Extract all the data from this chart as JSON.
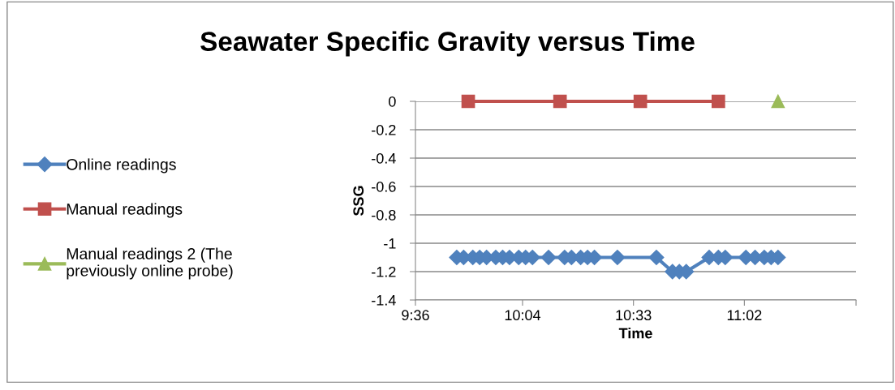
{
  "chart_data": {
    "type": "line",
    "title": "Seawater Specific Gravity versus Time",
    "xlabel": "Time",
    "ylabel": "SSG",
    "series": [
      {
        "name": "Online readings",
        "color": "#4f81bd",
        "marker": "diamond",
        "x": [
          9.78,
          9.81,
          9.85,
          9.88,
          9.91,
          9.95,
          9.98,
          10.01,
          10.05,
          10.08,
          10.11,
          10.18,
          10.25,
          10.28,
          10.32,
          10.35,
          10.38,
          10.48,
          10.65,
          10.72,
          10.75,
          10.78,
          10.88,
          10.92,
          10.95,
          11.04,
          11.08,
          11.12,
          11.15,
          11.18
        ],
        "values": [
          -1.1,
          -1.1,
          -1.1,
          -1.1,
          -1.1,
          -1.1,
          -1.1,
          -1.1,
          -1.1,
          -1.1,
          -1.1,
          -1.1,
          -1.1,
          -1.1,
          -1.1,
          -1.1,
          -1.1,
          -1.1,
          -1.1,
          -1.2,
          -1.2,
          -1.2,
          -1.1,
          -1.1,
          -1.1,
          -1.1,
          -1.1,
          -1.1,
          -1.1,
          -1.1
        ]
      },
      {
        "name": "Manual readings",
        "color": "#c0504d",
        "marker": "square",
        "x": [
          9.83,
          10.23,
          10.58,
          10.92
        ],
        "values": [
          0,
          0,
          0,
          0
        ]
      },
      {
        "name": "Manual readings 2 (The\npreviously online probe)",
        "color": "#9bbb59",
        "marker": "triangle",
        "x": [
          11.18
        ],
        "values": [
          0
        ]
      }
    ],
    "xlim": [
      9.6,
      11.52
    ],
    "xticks": [
      {
        "value": 9.6,
        "label": "9:36"
      },
      {
        "value": 10.0667,
        "label": "10:04"
      },
      {
        "value": 10.55,
        "label": "10:33"
      },
      {
        "value": 11.0333,
        "label": "11:02"
      },
      {
        "value": 11.52,
        "label": null
      }
    ],
    "ylim": [
      -1.4,
      0
    ],
    "yticks": [
      -1.4,
      -1.2,
      -1,
      -0.8,
      -0.6,
      -0.4,
      -0.2,
      0
    ],
    "grid": "y",
    "legend": "left",
    "line_style": "solid"
  }
}
